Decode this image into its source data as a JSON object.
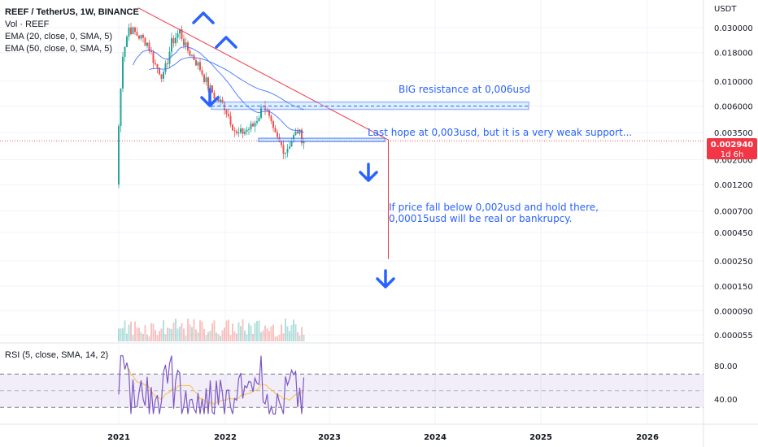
{
  "legend": {
    "symbol": "REEF / TetherUS, 1W, BINANCE",
    "vol": "Vol · REEF",
    "ema20": "EMA (20, close, 0, SMA, 5)",
    "ema50": "EMA (50, close, 0, SMA, 5)",
    "rsi": "RSI (5, close, SMA, 14, 2)"
  },
  "price_badge": {
    "price": "0.002940",
    "countdown": "1d 6h"
  },
  "colors": {
    "up": "#26a69a",
    "down": "#ef5350",
    "annotation": "#2962ff",
    "rsi_line": "#7e57c2",
    "rsi_ma": "#f5c242",
    "trendline": "#f23645",
    "ema20": "#2962ff",
    "ema50": "#2962ff"
  },
  "annotations": {
    "resistance": "BIG resistance at 0,006usd",
    "support": "Last hope at 0,003usd, but it is a very weak support...",
    "scenario_line1": "If price fall below 0,002usd and hold there,",
    "scenario_line2": "0,00015usd will be real or bankrupcy."
  },
  "chart_data": [
    {
      "type": "candlestick",
      "title": "",
      "y_unit": "USDT",
      "y_scale": "log",
      "ylim": [
        5e-05,
        0.045
      ],
      "x_ticks": [
        "2021",
        "2022",
        "2023",
        "2024",
        "2025",
        "2026"
      ],
      "y_ticks": [
        0.03,
        0.018,
        0.01,
        0.006,
        0.0035,
        0.002,
        0.0012,
        0.0007,
        0.00045,
        0.00025,
        0.00015,
        9e-05,
        5.5e-05
      ],
      "y_tick_labels": [
        "0.030000",
        "0.018000",
        "0.010000",
        "0.006000",
        "0.003500",
        "0.002000",
        "0.001200",
        "0.000700",
        "0.000450",
        "0.000250",
        "0.000150",
        "0.000090",
        "0.000055"
      ],
      "last_price": 0.00294,
      "resistance_level": 0.006,
      "support_level": 0.003,
      "target_level": 0.00015
    },
    {
      "type": "line",
      "title": "",
      "ylim": [
        20,
        95
      ],
      "y_ticks": [
        80,
        40
      ],
      "y_tick_labels": [
        "80.00",
        "40.00"
      ],
      "overbought": 70,
      "oversold": 30
    }
  ]
}
